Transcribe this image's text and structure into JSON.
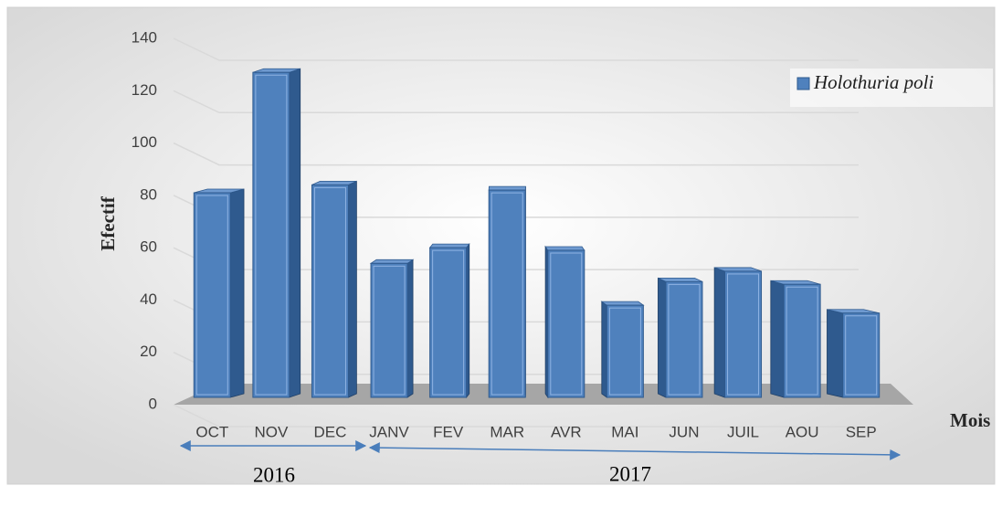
{
  "chart_data": {
    "type": "bar3d",
    "categories": [
      "OCT",
      "NOV",
      "DEC",
      "JANV",
      "FEV",
      "MAR",
      "AVR",
      "MAI",
      "JUN",
      "JUIL",
      "AOU",
      "SEP"
    ],
    "series": [
      {
        "name": "Holothuria poli",
        "color": "#4f81bd",
        "values": [
          81,
          127,
          84,
          54,
          60,
          82,
          59,
          38,
          47,
          51,
          46,
          35
        ]
      }
    ],
    "ylim": [
      0,
      140
    ],
    "yticks": [
      0,
      20,
      40,
      60,
      80,
      100,
      120,
      140
    ],
    "grid": true,
    "ylabel": "Efectif",
    "xlabel": "Mois",
    "legend": "top-right",
    "annotations": [
      "2016",
      "2017"
    ]
  }
}
